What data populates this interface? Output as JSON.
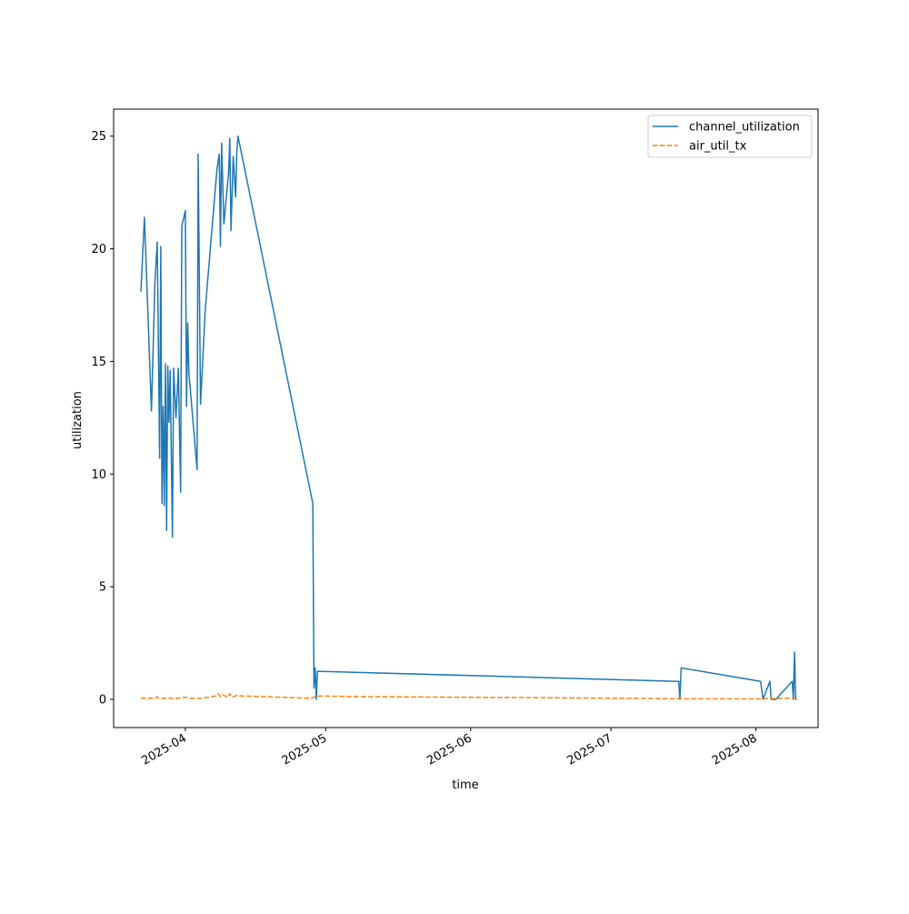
{
  "chart_data": {
    "type": "line",
    "title": "",
    "xlabel": "time",
    "ylabel": "utilization",
    "x_type": "date",
    "xlim": [
      "2025-03-16T16:00",
      "2025-08-14T07:00"
    ],
    "ylim": [
      -1.25,
      26.2
    ],
    "grid": false,
    "legend_position": "top-right",
    "x_ticks": [
      {
        "value": "2025-04-01",
        "label": "2025-04"
      },
      {
        "value": "2025-05-01",
        "label": "2025-05"
      },
      {
        "value": "2025-06-01",
        "label": "2025-06"
      },
      {
        "value": "2025-07-01",
        "label": "2025-07"
      },
      {
        "value": "2025-08-01",
        "label": "2025-08"
      }
    ],
    "y_ticks": [
      {
        "value": 0,
        "label": "0"
      },
      {
        "value": 5,
        "label": "5"
      },
      {
        "value": 10,
        "label": "10"
      },
      {
        "value": 15,
        "label": "15"
      },
      {
        "value": 20,
        "label": "20"
      },
      {
        "value": 25,
        "label": "25"
      }
    ],
    "series": [
      {
        "name": "channel_utilization",
        "color": "#1f77b4",
        "dash": "solid",
        "points": [
          [
            "2025-03-22T12:00",
            18.1
          ],
          [
            "2025-03-23T06:00",
            21.4
          ],
          [
            "2025-03-24T18:00",
            12.8
          ],
          [
            "2025-03-25T12:00",
            18.5
          ],
          [
            "2025-03-26T00:00",
            20.3
          ],
          [
            "2025-03-26T12:00",
            10.7
          ],
          [
            "2025-03-26T18:00",
            20.1
          ],
          [
            "2025-03-27T00:00",
            8.7
          ],
          [
            "2025-03-27T06:00",
            13.0
          ],
          [
            "2025-03-27T12:00",
            8.6
          ],
          [
            "2025-03-27T18:00",
            14.9
          ],
          [
            "2025-03-28T00:00",
            7.5
          ],
          [
            "2025-03-28T06:00",
            14.8
          ],
          [
            "2025-03-28T12:00",
            12.3
          ],
          [
            "2025-03-28T18:00",
            14.6
          ],
          [
            "2025-03-29T06:00",
            7.2
          ],
          [
            "2025-03-29T12:00",
            14.7
          ],
          [
            "2025-03-30T00:00",
            12.5
          ],
          [
            "2025-03-30T12:00",
            14.7
          ],
          [
            "2025-03-31T00:00",
            9.2
          ],
          [
            "2025-03-31T06:00",
            21.0
          ],
          [
            "2025-04-01T00:00",
            21.7
          ],
          [
            "2025-04-01T06:00",
            13.0
          ],
          [
            "2025-04-01T12:00",
            16.7
          ],
          [
            "2025-04-01T18:00",
            14.5
          ],
          [
            "2025-04-03T12:00",
            10.2
          ],
          [
            "2025-04-03T18:00",
            24.2
          ],
          [
            "2025-04-04T06:00",
            13.1
          ],
          [
            "2025-04-05T06:00",
            17.3
          ],
          [
            "2025-04-07T18:00",
            23.5
          ],
          [
            "2025-04-08T06:00",
            24.2
          ],
          [
            "2025-04-08T12:00",
            20.1
          ],
          [
            "2025-04-08T18:00",
            24.7
          ],
          [
            "2025-04-09T06:00",
            21.1
          ],
          [
            "2025-04-10T06:00",
            23.4
          ],
          [
            "2025-04-10T12:00",
            24.9
          ],
          [
            "2025-04-10T18:00",
            20.8
          ],
          [
            "2025-04-11T06:00",
            24.1
          ],
          [
            "2025-04-11T18:00",
            22.3
          ],
          [
            "2025-04-12T00:00",
            24.3
          ],
          [
            "2025-04-12T06:00",
            25.0
          ],
          [
            "2025-04-28T06:00",
            8.7
          ],
          [
            "2025-04-28T12:00",
            0.5
          ],
          [
            "2025-04-28T18:00",
            1.4
          ],
          [
            "2025-04-29T00:00",
            0.0
          ],
          [
            "2025-04-29T06:00",
            1.25
          ],
          [
            "2025-07-15T12:00",
            0.8
          ],
          [
            "2025-07-15T18:00",
            0.0
          ],
          [
            "2025-07-16T00:00",
            1.4
          ],
          [
            "2025-08-02T00:00",
            0.8
          ],
          [
            "2025-08-02T12:00",
            0.0
          ],
          [
            "2025-08-04T00:00",
            0.8
          ],
          [
            "2025-08-04T06:00",
            0.0
          ],
          [
            "2025-08-05T06:00",
            0.0
          ],
          [
            "2025-08-08T18:00",
            0.8
          ],
          [
            "2025-08-09T00:00",
            0.0
          ],
          [
            "2025-08-09T06:00",
            2.1
          ],
          [
            "2025-08-09T12:00",
            0.0
          ],
          [
            "2025-08-09T18:00",
            0.0
          ]
        ]
      },
      {
        "name": "air_util_tx",
        "color": "#ff7f0e",
        "dash": "dashed",
        "points": [
          [
            "2025-03-22T12:00",
            0.05
          ],
          [
            "2025-03-25T12:00",
            0.05
          ],
          [
            "2025-03-26T00:00",
            0.12
          ],
          [
            "2025-03-26T12:00",
            0.03
          ],
          [
            "2025-03-28T00:00",
            0.06
          ],
          [
            "2025-03-30T00:00",
            0.04
          ],
          [
            "2025-04-01T00:00",
            0.1
          ],
          [
            "2025-04-02T00:00",
            0.05
          ],
          [
            "2025-04-04T00:00",
            0.04
          ],
          [
            "2025-04-06T00:00",
            0.1
          ],
          [
            "2025-04-07T12:00",
            0.15
          ],
          [
            "2025-04-08T00:00",
            0.25
          ],
          [
            "2025-04-08T12:00",
            0.12
          ],
          [
            "2025-04-09T00:00",
            0.2
          ],
          [
            "2025-04-10T00:00",
            0.1
          ],
          [
            "2025-04-10T12:00",
            0.25
          ],
          [
            "2025-04-11T00:00",
            0.1
          ],
          [
            "2025-04-12T00:00",
            0.18
          ],
          [
            "2025-04-13T00:00",
            0.15
          ],
          [
            "2025-04-28T00:00",
            0.05
          ],
          [
            "2025-04-29T00:00",
            0.15
          ],
          [
            "2025-05-10T00:00",
            0.12
          ],
          [
            "2025-06-15T00:00",
            0.08
          ],
          [
            "2025-07-15T00:00",
            0.03
          ],
          [
            "2025-08-01T00:00",
            0.02
          ],
          [
            "2025-08-05T00:00",
            0.04
          ],
          [
            "2025-08-09T12:00",
            0.05
          ]
        ]
      }
    ]
  }
}
